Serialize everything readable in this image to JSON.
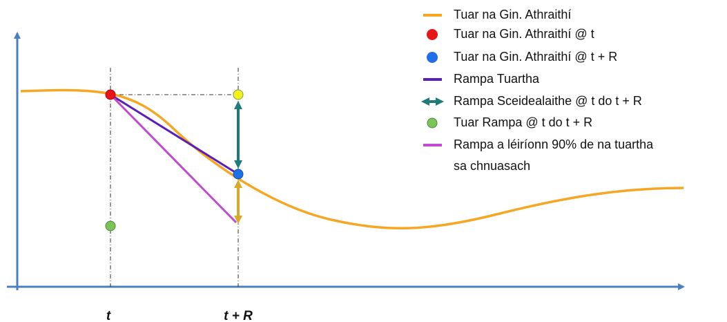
{
  "axis_labels": [
    "t",
    "t + R"
  ],
  "legend": [
    {
      "lines": [
        "Tuar na Gin. Athraithí"
      ]
    },
    {
      "lines": [
        "Tuar na Gin. Athraithí @ t"
      ]
    },
    {
      "lines": [
        "Tuar na Gin. Athraithí @ t + R"
      ]
    },
    {
      "lines": [
        "Rampa Tuartha"
      ]
    },
    {
      "lines": [
        "Rampa Sceidealaithe  @ t do t + R"
      ]
    },
    {
      "lines": [
        "Tuar Rampa @ t do t + R"
      ]
    },
    {
      "lines": [
        "Rampa a léiríonn 90% de na tuartha",
        "sa chnuasach"
      ]
    }
  ]
}
